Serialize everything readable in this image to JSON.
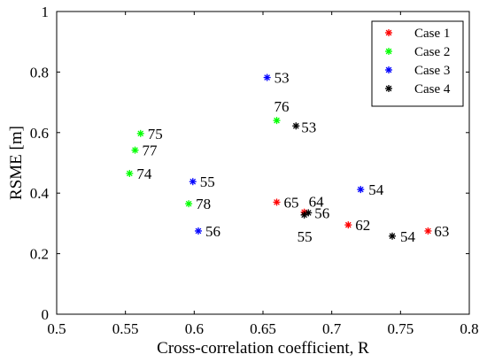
{
  "chart_data": {
    "type": "scatter",
    "xlabel": "Cross-correlation coefficient, R",
    "ylabel": "RSME [m]",
    "xlim": [
      0.5,
      0.8
    ],
    "ylim": [
      0,
      1
    ],
    "x_ticks": [
      "0.5",
      "0.55",
      "0.6",
      "0.65",
      "0.7",
      "0.75",
      "0.8"
    ],
    "y_ticks": [
      "0",
      "0.2",
      "0.4",
      "0.6",
      "0.8",
      "1"
    ],
    "grid": false,
    "legend_position": "top-right",
    "series": [
      {
        "name": "Case 1",
        "color": "#ff0000",
        "points": [
          {
            "x": 0.66,
            "y": 0.37,
            "label": "65"
          },
          {
            "x": 0.68,
            "y": 0.337,
            "label": "64"
          },
          {
            "x": 0.712,
            "y": 0.295,
            "label": "62"
          },
          {
            "x": 0.77,
            "y": 0.275,
            "label": "63"
          }
        ]
      },
      {
        "name": "Case 2",
        "color": "#00ff00",
        "points": [
          {
            "x": 0.561,
            "y": 0.597,
            "label": "75"
          },
          {
            "x": 0.557,
            "y": 0.542,
            "label": "77"
          },
          {
            "x": 0.553,
            "y": 0.465,
            "label": "74"
          },
          {
            "x": 0.66,
            "y": 0.64,
            "label": "76"
          },
          {
            "x": 0.596,
            "y": 0.365,
            "label": "78"
          }
        ]
      },
      {
        "name": "Case 3",
        "color": "#0000ff",
        "points": [
          {
            "x": 0.653,
            "y": 0.782,
            "label": "53"
          },
          {
            "x": 0.599,
            "y": 0.438,
            "label": "55"
          },
          {
            "x": 0.603,
            "y": 0.275,
            "label": "56"
          },
          {
            "x": 0.721,
            "y": 0.412,
            "label": "54"
          }
        ]
      },
      {
        "name": "Case 4",
        "color": "#000000",
        "points": [
          {
            "x": 0.674,
            "y": 0.622,
            "label": "53"
          },
          {
            "x": 0.683,
            "y": 0.335,
            "label": "56"
          },
          {
            "x": 0.68,
            "y": 0.328,
            "label": "55"
          },
          {
            "x": 0.744,
            "y": 0.258,
            "label": "54"
          }
        ]
      }
    ]
  }
}
